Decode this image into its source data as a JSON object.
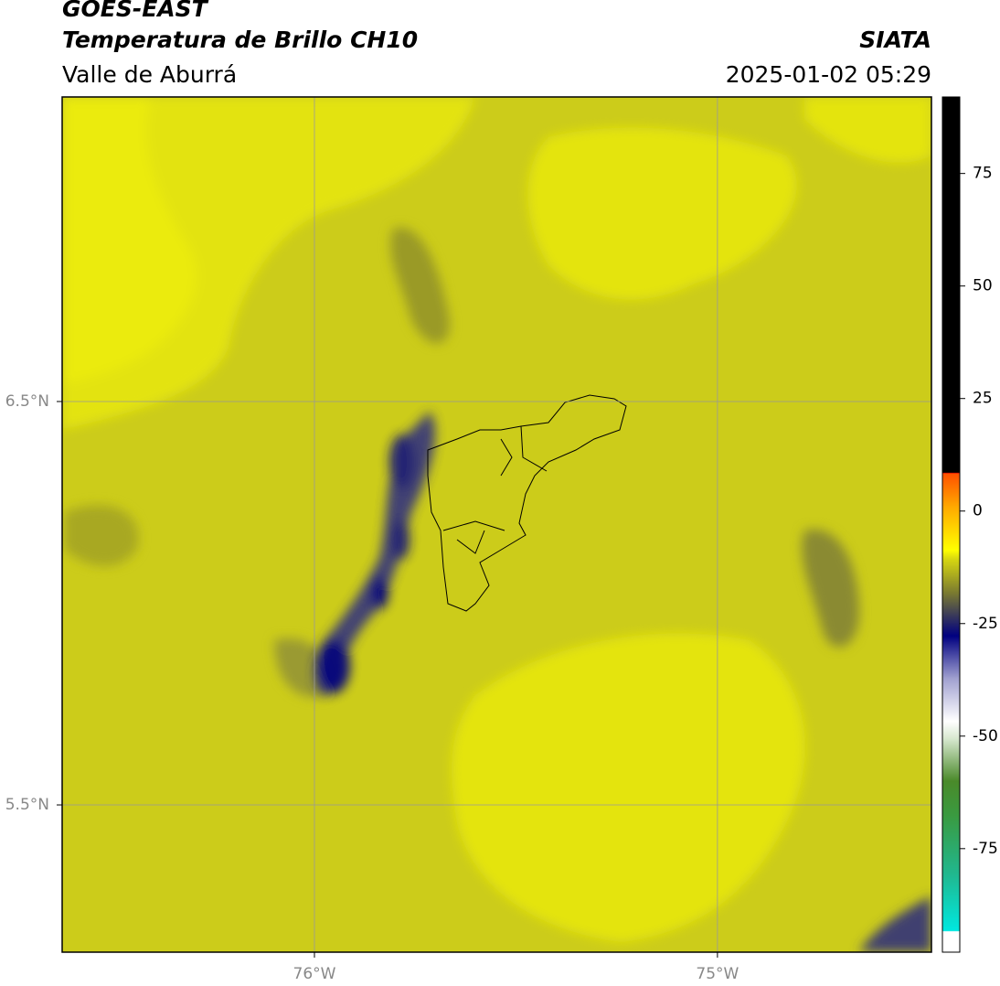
{
  "header": {
    "title": "GOES-EAST",
    "subtitle": "Temperatura de Brillo CH10",
    "region": "Valle de Aburrá",
    "source": "SIATA",
    "datetime": "2025-01-02 05:29"
  },
  "map": {
    "xlim": [
      -76.626,
      -74.469
    ],
    "ylim": [
      5.135,
      7.255
    ],
    "xticks": [
      {
        "value": -76,
        "label": "76°W"
      },
      {
        "value": -75,
        "label": "75°W"
      }
    ],
    "yticks": [
      {
        "value": 6.5,
        "label": "6.5°N"
      },
      {
        "value": 5.5,
        "label": "5.5°N"
      }
    ]
  },
  "colorbar": {
    "lim": [
      -98,
      92
    ],
    "ticks": [
      75,
      50,
      25,
      0,
      -25,
      -50,
      -75
    ]
  }
}
